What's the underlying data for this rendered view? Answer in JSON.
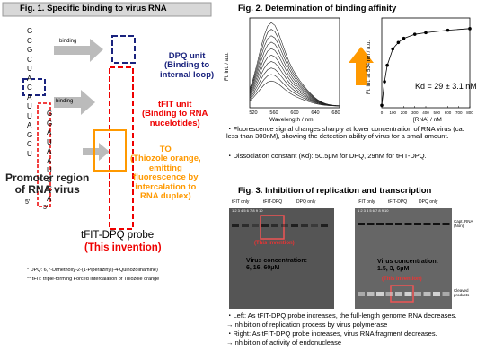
{
  "fig1": {
    "title": "Fig. 1. Specific binding to virus RNA",
    "strand_left": [
      "G",
      "C",
      "G",
      "C",
      "U",
      "A",
      "C",
      "A",
      "U",
      "U",
      "A",
      "G",
      "C",
      "U"
    ],
    "strand_right": [
      "G",
      "G",
      "A",
      "U",
      "A",
      "A",
      "U",
      "C",
      "G",
      "A"
    ],
    "five_prime": "5'",
    "three_prime": "3'",
    "binding_top": "binding",
    "binding_mid": "binding",
    "dpq": "DPQ unit\n(Binding to\ninternal loop)",
    "tfit": "tFIT unit\n(Binding to RNA\nnucelotides)",
    "to": "TO\n(Thiozole orange,\nemitting\nfluorescence by\nintercalation to\nRNA duplex)",
    "promoter": "Promoter region\nof RNA virus",
    "probe": "tFIT-DPQ probe",
    "invention": "(This invention)",
    "notes": [
      "*   DPQ: 6,7-Dimethoxy-2-(1-Piperazinyl)-4-Quinozolinamine)",
      "**  tFIT: triple-forming Forced Intercalation of Thiozole orange"
    ]
  },
  "fig2": {
    "title": "Fig. 2. Determination of binding affinity",
    "spectra": {
      "ylabel": "Fl. Int. / a.u.",
      "xlabel": "Wavelength / nm",
      "xticks": [
        "520",
        "560",
        "600",
        "640",
        "680"
      ]
    },
    "binding": {
      "ylabel": "Fl. Int. at 534 nm / a.u.",
      "xlabel": "[RNA] / nM",
      "xlim": [
        0,
        800
      ],
      "xticks": [
        0,
        100,
        200,
        300,
        400,
        500,
        600,
        700,
        800
      ],
      "x": [
        0,
        25,
        50,
        100,
        150,
        200,
        300,
        400,
        600,
        800
      ],
      "y": [
        0.03,
        0.32,
        0.52,
        0.72,
        0.8,
        0.85,
        0.9,
        0.92,
        0.95,
        0.97
      ],
      "ylim": [
        0,
        1.1
      ],
      "kd": "Kd = 29 ± 3.1 nM"
    },
    "bullets": [
      "・Fluorescence signal changes sharply at lower concentration of RNA virus (ca. less than 300nM), showing the detection ability of virus for a small amount.",
      "・Dissociation constant (Kd): 50.5μM for DPQ, 29nM for tFIT-DPQ."
    ]
  },
  "fig3": {
    "title": "Fig. 3. Inhibition of replication and transcription",
    "lanes": [
      "tFIT only",
      "tFIT-DPQ",
      "DPQ only"
    ],
    "lane_numbers": "1  2  3  4  5  6  7  8  9  10",
    "left_invention": "(This invention)",
    "left_conc": "Virus concentration:\n6, 16, 60μM",
    "right_invention": "(This invention)",
    "right_conc": "Virus concentration:\n1.5, 3, 6μM",
    "capt": "Capt. RNA\n(Non)",
    "cleaved": "Cleaved\nproducts",
    "notes": [
      "・Left: As tFIT-DPQ probe increases, the full-length genome RNA decreases.",
      "→Inhibition of replication process by virus polymerase",
      "・Right: As tFIT-DPQ probe increases, virus RNA fragment decreases.",
      "→Inhibition of activity of endonuclease"
    ]
  }
}
